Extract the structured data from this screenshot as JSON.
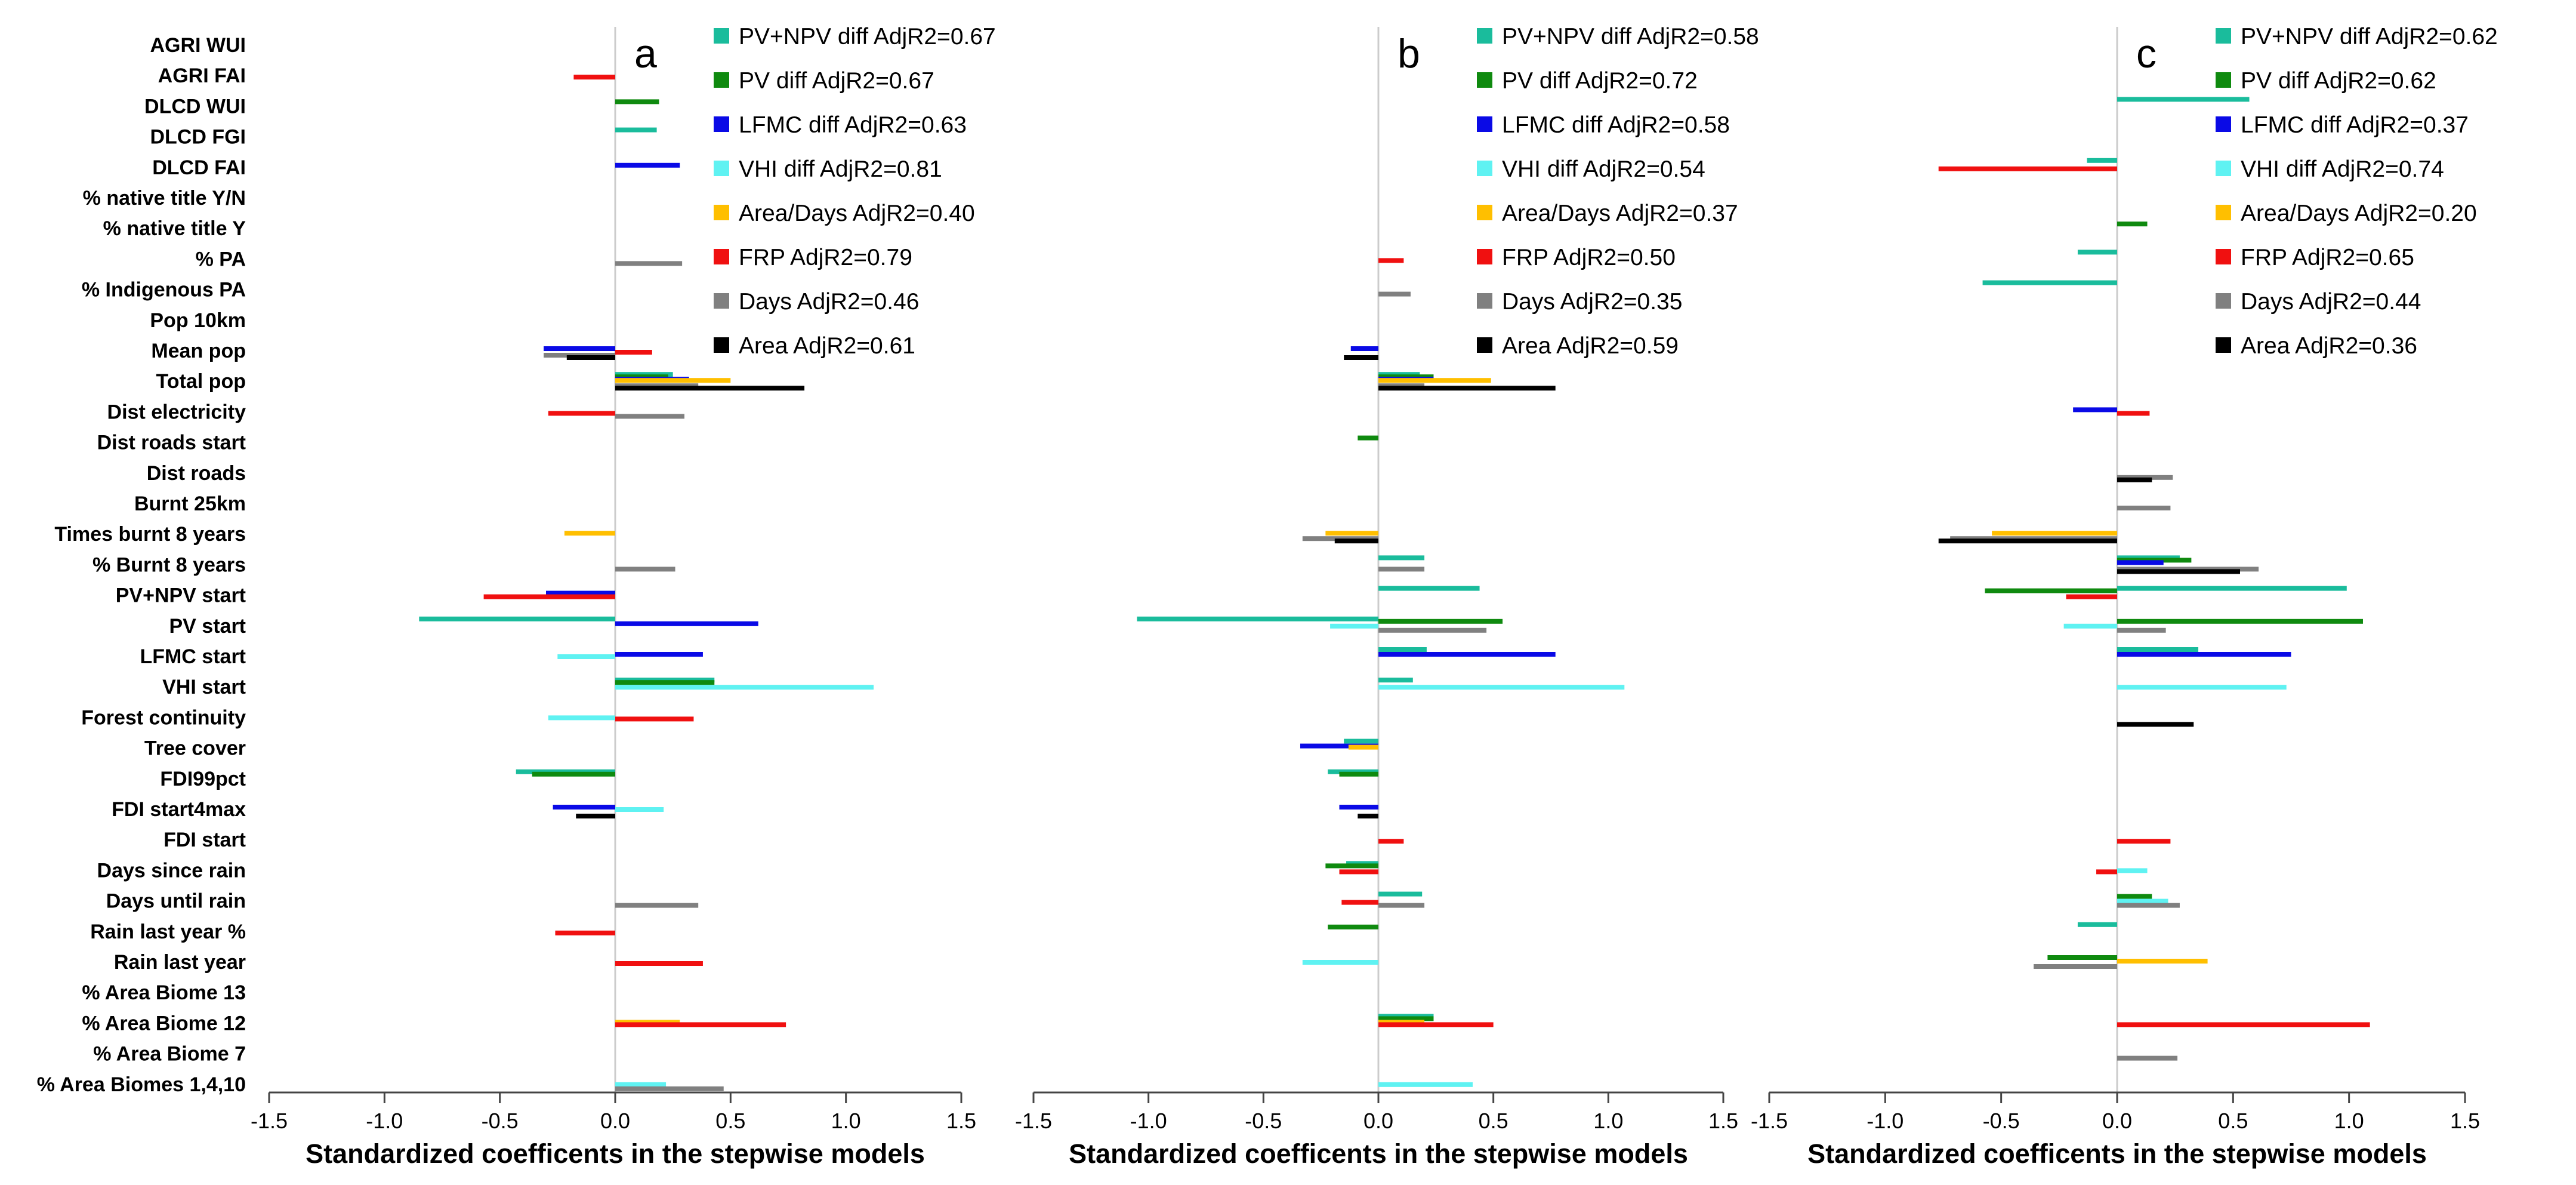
{
  "chart_data": {
    "type": "bar",
    "orientation": "horizontal",
    "xlabel": "Standardized  coefficents in the stepwise models",
    "xlim": [
      -1.5,
      1.5
    ],
    "xticks": [
      "-1.5",
      "-1.0",
      "-0.5",
      "0.0",
      "0.5",
      "1.0",
      "1.5"
    ],
    "variables": [
      "AGRI WUI",
      "AGRI FAI",
      "DLCD WUI",
      "DLCD FGI",
      "DLCD FAI",
      "% native title Y/N",
      "% native title Y",
      "% PA",
      "% Indigenous PA",
      "Pop 10km",
      "Mean pop",
      "Total pop",
      "Dist electricity",
      "Dist roads start",
      "Dist roads",
      "Burnt 25km",
      "Times burnt 8 years",
      "% Burnt 8 years",
      "PV+NPV start",
      "PV start",
      "LFMC start",
      "VHI start",
      "Forest continuity",
      "Tree cover",
      "FDI99pct",
      "FDI start4max",
      "FDI start",
      "Days since rain",
      "Days until rain",
      "Rain last year %",
      "Rain last year",
      "% Area Biome 13",
      "% Area Biome 12",
      "% Area Biome 7",
      "% Area Biomes 1,4,10"
    ],
    "series_colors": {
      "pvnpv": "#1ABC9C",
      "pv": "#0F8A0F",
      "lfmc": "#0A0AE6",
      "vhi": "#5FF2F2",
      "areadays": "#FFBF00",
      "frp": "#F01010",
      "days": "#808080",
      "area": "#000000"
    },
    "panels": [
      {
        "label": "a",
        "legend": [
          {
            "key": "pvnpv",
            "text": "PV+NPV diff AdjR2=0.67"
          },
          {
            "key": "pv",
            "text": "PV diff AdjR2=0.67"
          },
          {
            "key": "lfmc",
            "text": "LFMC diff AdjR2=0.63"
          },
          {
            "key": "vhi",
            "text": "VHI diff AdjR2=0.81"
          },
          {
            "key": "areadays",
            "text": "Area/Days AdjR2=0.40"
          },
          {
            "key": "frp",
            "text": "FRP AdjR2=0.79"
          },
          {
            "key": "days",
            "text": "Days AdjR2=0.46"
          },
          {
            "key": "area",
            "text": "Area AdjR2=0.61"
          }
        ],
        "bars": [
          {
            "var": 1,
            "key": "frp",
            "value": -0.18
          },
          {
            "var": 2,
            "key": "pv",
            "value": 0.19
          },
          {
            "var": 3,
            "key": "pvnpv",
            "value": 0.18
          },
          {
            "var": 4,
            "key": "lfmc",
            "value": 0.28
          },
          {
            "var": 7,
            "key": "days",
            "value": 0.29
          },
          {
            "var": 10,
            "key": "lfmc",
            "value": -0.31
          },
          {
            "var": 10,
            "key": "frp",
            "value": 0.16
          },
          {
            "var": 10,
            "key": "days",
            "value": -0.31
          },
          {
            "var": 10,
            "key": "area",
            "value": -0.21
          },
          {
            "var": 11,
            "key": "pvnpv",
            "value": 0.25
          },
          {
            "var": 11,
            "key": "pv",
            "value": 0.23
          },
          {
            "var": 11,
            "key": "lfmc",
            "value": 0.32
          },
          {
            "var": 11,
            "key": "areadays",
            "value": 0.5
          },
          {
            "var": 11,
            "key": "days",
            "value": 0.36
          },
          {
            "var": 11,
            "key": "area",
            "value": 0.82
          },
          {
            "var": 12,
            "key": "frp",
            "value": -0.29
          },
          {
            "var": 12,
            "key": "days",
            "value": 0.3
          },
          {
            "var": 16,
            "key": "areadays",
            "value": -0.22
          },
          {
            "var": 17,
            "key": "days",
            "value": 0.26
          },
          {
            "var": 18,
            "key": "lfmc",
            "value": -0.3
          },
          {
            "var": 18,
            "key": "frp",
            "value": -0.57
          },
          {
            "var": 19,
            "key": "pvnpv",
            "value": -0.85
          },
          {
            "var": 19,
            "key": "lfmc",
            "value": 0.62
          },
          {
            "var": 20,
            "key": "lfmc",
            "value": 0.38
          },
          {
            "var": 20,
            "key": "vhi",
            "value": -0.25
          },
          {
            "var": 21,
            "key": "pvnpv",
            "value": 0.43
          },
          {
            "var": 21,
            "key": "pv",
            "value": 0.43
          },
          {
            "var": 21,
            "key": "vhi",
            "value": 1.12
          },
          {
            "var": 22,
            "key": "vhi",
            "value": -0.29
          },
          {
            "var": 22,
            "key": "frp",
            "value": 0.34
          },
          {
            "var": 24,
            "key": "pvnpv",
            "value": -0.43
          },
          {
            "var": 24,
            "key": "pv",
            "value": -0.36
          },
          {
            "var": 25,
            "key": "lfmc",
            "value": -0.27
          },
          {
            "var": 25,
            "key": "vhi",
            "value": 0.21
          },
          {
            "var": 25,
            "key": "area",
            "value": -0.17
          },
          {
            "var": 28,
            "key": "days",
            "value": 0.36
          },
          {
            "var": 29,
            "key": "frp",
            "value": -0.26
          },
          {
            "var": 30,
            "key": "frp",
            "value": 0.38
          },
          {
            "var": 32,
            "key": "areadays",
            "value": 0.28
          },
          {
            "var": 32,
            "key": "frp",
            "value": 0.74
          },
          {
            "var": 34,
            "key": "vhi",
            "value": 0.22
          },
          {
            "var": 34,
            "key": "days",
            "value": 0.47
          }
        ]
      },
      {
        "label": "b",
        "legend": [
          {
            "key": "pvnpv",
            "text": "PV+NPV diff AdjR2=0.58"
          },
          {
            "key": "pv",
            "text": "PV diff AdjR2=0.72"
          },
          {
            "key": "lfmc",
            "text": "LFMC diff AdjR2=0.58"
          },
          {
            "key": "vhi",
            "text": "VHI diff AdjR2=0.54"
          },
          {
            "key": "areadays",
            "text": "Area/Days AdjR2=0.37"
          },
          {
            "key": "frp",
            "text": "FRP AdjR2=0.50"
          },
          {
            "key": "days",
            "text": "Days AdjR2=0.35"
          },
          {
            "key": "area",
            "text": "Area AdjR2=0.59"
          }
        ],
        "bars": [
          {
            "var": 7,
            "key": "frp",
            "value": 0.11
          },
          {
            "var": 8,
            "key": "days",
            "value": 0.14
          },
          {
            "var": 10,
            "key": "lfmc",
            "value": -0.12
          },
          {
            "var": 10,
            "key": "area",
            "value": -0.15
          },
          {
            "var": 11,
            "key": "pvnpv",
            "value": 0.18
          },
          {
            "var": 11,
            "key": "pv",
            "value": 0.24
          },
          {
            "var": 11,
            "key": "lfmc",
            "value": 0.24
          },
          {
            "var": 11,
            "key": "areadays",
            "value": 0.49
          },
          {
            "var": 11,
            "key": "days",
            "value": 0.2
          },
          {
            "var": 11,
            "key": "area",
            "value": 0.77
          },
          {
            "var": 13,
            "key": "pv",
            "value": -0.09
          },
          {
            "var": 16,
            "key": "areadays",
            "value": -0.23
          },
          {
            "var": 16,
            "key": "days",
            "value": -0.33
          },
          {
            "var": 16,
            "key": "area",
            "value": -0.19
          },
          {
            "var": 17,
            "key": "pvnpv",
            "value": 0.2
          },
          {
            "var": 17,
            "key": "days",
            "value": 0.2
          },
          {
            "var": 18,
            "key": "pvnpv",
            "value": 0.44
          },
          {
            "var": 19,
            "key": "pvnpv",
            "value": -1.05
          },
          {
            "var": 19,
            "key": "pv",
            "value": 0.54
          },
          {
            "var": 19,
            "key": "vhi",
            "value": -0.21
          },
          {
            "var": 19,
            "key": "days",
            "value": 0.47
          },
          {
            "var": 20,
            "key": "pvnpv",
            "value": 0.21
          },
          {
            "var": 20,
            "key": "lfmc",
            "value": 0.77
          },
          {
            "var": 21,
            "key": "pvnpv",
            "value": 0.15
          },
          {
            "var": 21,
            "key": "vhi",
            "value": 1.07
          },
          {
            "var": 23,
            "key": "pvnpv",
            "value": -0.15
          },
          {
            "var": 23,
            "key": "lfmc",
            "value": -0.34
          },
          {
            "var": 23,
            "key": "areadays",
            "value": -0.13
          },
          {
            "var": 24,
            "key": "pvnpv",
            "value": -0.22
          },
          {
            "var": 24,
            "key": "pv",
            "value": -0.17
          },
          {
            "var": 25,
            "key": "lfmc",
            "value": -0.17
          },
          {
            "var": 25,
            "key": "area",
            "value": -0.09
          },
          {
            "var": 26,
            "key": "frp",
            "value": 0.11
          },
          {
            "var": 27,
            "key": "pvnpv",
            "value": -0.14
          },
          {
            "var": 27,
            "key": "pv",
            "value": -0.23
          },
          {
            "var": 27,
            "key": "frp",
            "value": -0.17
          },
          {
            "var": 28,
            "key": "pvnpv",
            "value": 0.19
          },
          {
            "var": 28,
            "key": "frp",
            "value": -0.16
          },
          {
            "var": 28,
            "key": "days",
            "value": 0.2
          },
          {
            "var": 29,
            "key": "pv",
            "value": -0.22
          },
          {
            "var": 30,
            "key": "vhi",
            "value": -0.33
          },
          {
            "var": 32,
            "key": "pvnpv",
            "value": 0.24
          },
          {
            "var": 32,
            "key": "pv",
            "value": 0.24
          },
          {
            "var": 32,
            "key": "areadays",
            "value": 0.2
          },
          {
            "var": 32,
            "key": "frp",
            "value": 0.5
          },
          {
            "var": 34,
            "key": "vhi",
            "value": 0.41
          }
        ]
      },
      {
        "label": "c",
        "legend": [
          {
            "key": "pvnpv",
            "text": "PV+NPV diff AdjR2=0.62"
          },
          {
            "key": "pv",
            "text": "PV diff AdjR2=0.62"
          },
          {
            "key": "lfmc",
            "text": "LFMC diff AdjR2=0.37"
          },
          {
            "key": "vhi",
            "text": "VHI diff AdjR2=0.74"
          },
          {
            "key": "areadays",
            "text": "Area/Days AdjR2=0.20"
          },
          {
            "key": "frp",
            "text": "FRP AdjR2=0.65"
          },
          {
            "key": "days",
            "text": "Days AdjR2=0.44"
          },
          {
            "key": "area",
            "text": "Area AdjR2=0.36"
          }
        ],
        "bars": [
          {
            "var": 2,
            "key": "pvnpv",
            "value": 0.57
          },
          {
            "var": 4,
            "key": "pvnpv",
            "value": -0.13
          },
          {
            "var": 4,
            "key": "frp",
            "value": -0.77
          },
          {
            "var": 6,
            "key": "pv",
            "value": 0.13
          },
          {
            "var": 7,
            "key": "pvnpv",
            "value": -0.17
          },
          {
            "var": 8,
            "key": "pvnpv",
            "value": -0.58
          },
          {
            "var": 12,
            "key": "lfmc",
            "value": -0.19
          },
          {
            "var": 12,
            "key": "frp",
            "value": 0.14
          },
          {
            "var": 14,
            "key": "days",
            "value": 0.24
          },
          {
            "var": 14,
            "key": "area",
            "value": 0.15
          },
          {
            "var": 15,
            "key": "days",
            "value": 0.23
          },
          {
            "var": 16,
            "key": "areadays",
            "value": -0.54
          },
          {
            "var": 16,
            "key": "days",
            "value": -0.72
          },
          {
            "var": 16,
            "key": "area",
            "value": -0.77
          },
          {
            "var": 17,
            "key": "pvnpv",
            "value": 0.27
          },
          {
            "var": 17,
            "key": "pv",
            "value": 0.32
          },
          {
            "var": 17,
            "key": "lfmc",
            "value": 0.2
          },
          {
            "var": 17,
            "key": "days",
            "value": 0.61
          },
          {
            "var": 17,
            "key": "area",
            "value": 0.53
          },
          {
            "var": 18,
            "key": "pvnpv",
            "value": 0.99
          },
          {
            "var": 18,
            "key": "pv",
            "value": -0.57
          },
          {
            "var": 18,
            "key": "frp",
            "value": -0.22
          },
          {
            "var": 19,
            "key": "vhi",
            "value": -0.23
          },
          {
            "var": 19,
            "key": "pv",
            "value": 1.06
          },
          {
            "var": 19,
            "key": "days",
            "value": 0.21
          },
          {
            "var": 20,
            "key": "pvnpv",
            "value": 0.35
          },
          {
            "var": 20,
            "key": "lfmc",
            "value": 0.75
          },
          {
            "var": 21,
            "key": "vhi",
            "value": 0.73
          },
          {
            "var": 22,
            "key": "area",
            "value": 0.33
          },
          {
            "var": 26,
            "key": "frp",
            "value": 0.23
          },
          {
            "var": 27,
            "key": "vhi",
            "value": 0.13
          },
          {
            "var": 27,
            "key": "frp",
            "value": -0.09
          },
          {
            "var": 28,
            "key": "pv",
            "value": 0.15
          },
          {
            "var": 28,
            "key": "vhi",
            "value": 0.22
          },
          {
            "var": 28,
            "key": "days",
            "value": 0.27
          },
          {
            "var": 29,
            "key": "pvnpv",
            "value": -0.17
          },
          {
            "var": 30,
            "key": "pv",
            "value": -0.3
          },
          {
            "var": 30,
            "key": "areadays",
            "value": 0.39
          },
          {
            "var": 30,
            "key": "days",
            "value": -0.36
          },
          {
            "var": 32,
            "key": "frp",
            "value": 1.09
          },
          {
            "var": 33,
            "key": "days",
            "value": 0.26
          }
        ]
      }
    ]
  }
}
